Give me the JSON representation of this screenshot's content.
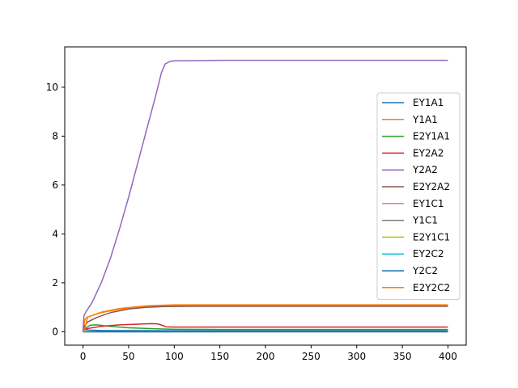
{
  "chart_data": {
    "type": "line",
    "title": "",
    "xlabel": "",
    "ylabel": "",
    "xlim": [
      -20,
      420
    ],
    "ylim": [
      -0.55,
      11.65
    ],
    "xticks": [
      0,
      50,
      100,
      150,
      200,
      250,
      300,
      350,
      400
    ],
    "yticks": [
      0,
      2,
      4,
      6,
      8,
      10
    ],
    "grid": false,
    "legend_position": "center-right",
    "series": [
      {
        "name": "EY1A1",
        "color": "#1f77b4",
        "points": [
          [
            0,
            0.15
          ],
          [
            2,
            0.1
          ],
          [
            5,
            0.07
          ],
          [
            20,
            0.05
          ],
          [
            100,
            0.04
          ],
          [
            400,
            0.04
          ]
        ]
      },
      {
        "name": "Y1A1",
        "color": "#ff7f0e",
        "points": [
          [
            0,
            0.0
          ],
          [
            2,
            0.5
          ],
          [
            5,
            0.6
          ],
          [
            20,
            0.78
          ],
          [
            40,
            0.92
          ],
          [
            60,
            1.0
          ],
          [
            80,
            1.05
          ],
          [
            100,
            1.07
          ],
          [
            150,
            1.08
          ],
          [
            400,
            1.08
          ]
        ]
      },
      {
        "name": "E2Y1A1",
        "color": "#2ca02c",
        "points": [
          [
            0,
            0.0
          ],
          [
            3,
            0.15
          ],
          [
            8,
            0.27
          ],
          [
            15,
            0.28
          ],
          [
            30,
            0.22
          ],
          [
            50,
            0.16
          ],
          [
            80,
            0.12
          ],
          [
            100,
            0.1
          ],
          [
            150,
            0.09
          ],
          [
            400,
            0.09
          ]
        ]
      },
      {
        "name": "EY2A2",
        "color": "#d62728",
        "points": [
          [
            0,
            0.05
          ],
          [
            5,
            0.13
          ],
          [
            20,
            0.22
          ],
          [
            40,
            0.28
          ],
          [
            60,
            0.31
          ],
          [
            75,
            0.33
          ],
          [
            82,
            0.32
          ],
          [
            87,
            0.26
          ],
          [
            91,
            0.2
          ],
          [
            100,
            0.19
          ],
          [
            400,
            0.19
          ]
        ]
      },
      {
        "name": "Y2A2",
        "color": "#9467bd",
        "points": [
          [
            0,
            0.0
          ],
          [
            1,
            0.65
          ],
          [
            3,
            0.8
          ],
          [
            10,
            1.2
          ],
          [
            20,
            2.0
          ],
          [
            30,
            3.0
          ],
          [
            40,
            4.2
          ],
          [
            50,
            5.5
          ],
          [
            60,
            6.9
          ],
          [
            70,
            8.3
          ],
          [
            80,
            9.7
          ],
          [
            86,
            10.6
          ],
          [
            90,
            10.95
          ],
          [
            95,
            11.05
          ],
          [
            100,
            11.08
          ],
          [
            150,
            11.1
          ],
          [
            400,
            11.1
          ]
        ]
      },
      {
        "name": "E2Y2A2",
        "color": "#8c564b",
        "points": [
          [
            0,
            0.0
          ],
          [
            2,
            0.25
          ],
          [
            5,
            0.4
          ],
          [
            15,
            0.58
          ],
          [
            30,
            0.78
          ],
          [
            50,
            0.93
          ],
          [
            70,
            1.0
          ],
          [
            90,
            1.03
          ],
          [
            120,
            1.04
          ],
          [
            400,
            1.04
          ]
        ]
      },
      {
        "name": "EY1C1",
        "color": "#e377c2",
        "points": [
          [
            0,
            0.0
          ],
          [
            400,
            0.0
          ]
        ]
      },
      {
        "name": "Y1C1",
        "color": "#7f7f7f",
        "points": [
          [
            0,
            0.0
          ],
          [
            400,
            0.0
          ]
        ]
      },
      {
        "name": "E2Y1C1",
        "color": "#bcbd22",
        "points": [
          [
            0,
            0.0
          ],
          [
            400,
            0.0
          ]
        ]
      },
      {
        "name": "EY2C2",
        "color": "#17becf",
        "points": [
          [
            0,
            0.0
          ],
          [
            400,
            0.0
          ]
        ]
      },
      {
        "name": "Y2C2",
        "color": "#1f77b4",
        "points": [
          [
            0,
            0.0
          ],
          [
            400,
            0.0
          ]
        ]
      },
      {
        "name": "E2Y2C2",
        "color": "#ff7f0e",
        "points": [
          [
            0,
            0.0
          ],
          [
            1,
            0.06
          ],
          [
            2,
            0.12
          ],
          [
            5,
            0.6
          ],
          [
            20,
            0.8
          ],
          [
            40,
            0.95
          ],
          [
            70,
            1.06
          ],
          [
            100,
            1.1
          ],
          [
            150,
            1.1
          ],
          [
            400,
            1.1
          ]
        ]
      }
    ]
  }
}
